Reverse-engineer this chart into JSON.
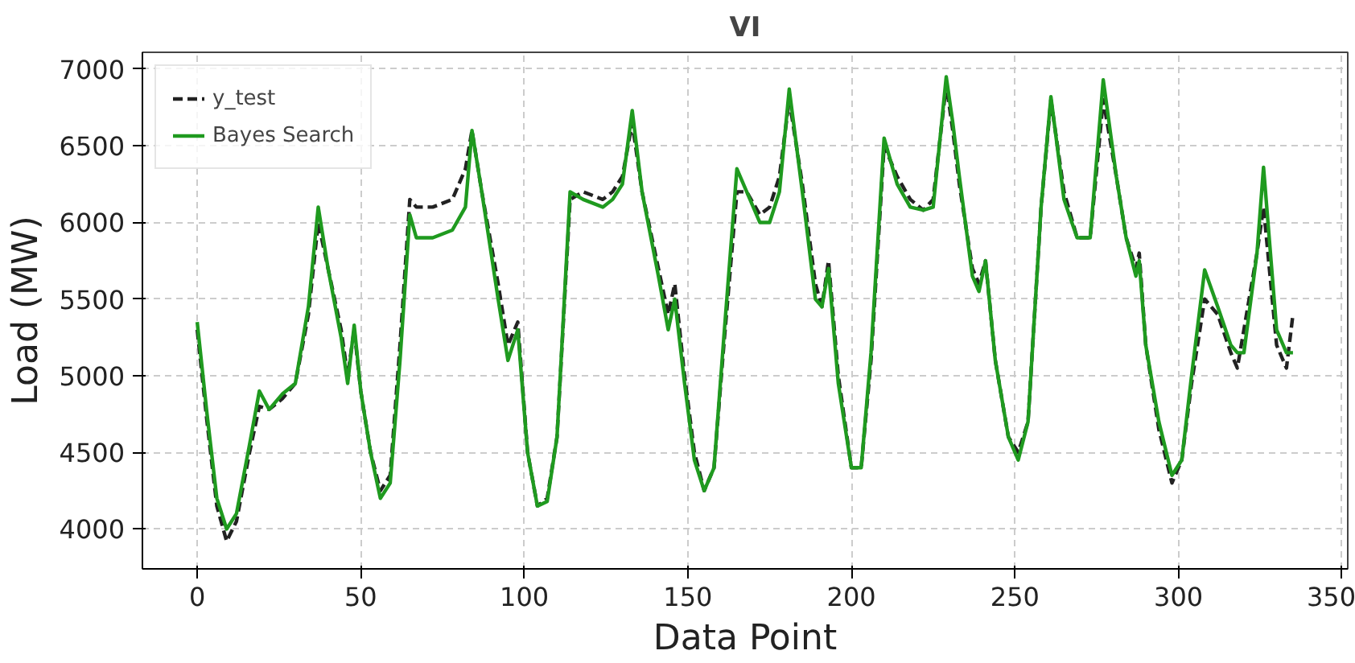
{
  "chart_data": {
    "type": "line",
    "title": "VI",
    "xlabel": "Data Point",
    "ylabel": "Load (MW)",
    "x": [
      0,
      3,
      6,
      9,
      12,
      16,
      19,
      22,
      26,
      30,
      34,
      37,
      40,
      44,
      46,
      48,
      50,
      53,
      56,
      59,
      62,
      65,
      67,
      72,
      78,
      82,
      84,
      87,
      92,
      95,
      98,
      101,
      104,
      107,
      110,
      114,
      118,
      124,
      127,
      130,
      133,
      136,
      141,
      144,
      146,
      149,
      152,
      155,
      158,
      161,
      165,
      168,
      172,
      175,
      178,
      181,
      185,
      189,
      191,
      193,
      196,
      200,
      203,
      206,
      210,
      214,
      218,
      222,
      225,
      229,
      231,
      233,
      237,
      239,
      241,
      244,
      248,
      251,
      254,
      258,
      261,
      265,
      269,
      273,
      277,
      281,
      284,
      287,
      288,
      290,
      294,
      298,
      301,
      304,
      308,
      312,
      316,
      318,
      320,
      324,
      326,
      330,
      333,
      335
    ],
    "series": [
      {
        "name": "y_test",
        "color": "#222222",
        "line_style": "dashed",
        "values": [
          5300,
          4700,
          4150,
          3920,
          4050,
          4500,
          4800,
          4780,
          4850,
          4950,
          5400,
          6000,
          5700,
          5300,
          5000,
          5300,
          4900,
          4500,
          4250,
          4350,
          5200,
          6150,
          6100,
          6100,
          6150,
          6350,
          6600,
          6200,
          5600,
          5200,
          5350,
          4500,
          4150,
          4200,
          4600,
          6150,
          6200,
          6150,
          6200,
          6300,
          6650,
          6200,
          5700,
          5400,
          5600,
          5000,
          4500,
          4250,
          4400,
          5200,
          6200,
          6200,
          6050,
          6100,
          6300,
          6800,
          6250,
          5600,
          5450,
          5750,
          5000,
          4400,
          4400,
          5100,
          6500,
          6300,
          6150,
          6080,
          6150,
          6900,
          6600,
          6250,
          5700,
          5600,
          5750,
          5100,
          4600,
          4500,
          4700,
          6100,
          6800,
          6200,
          5900,
          5900,
          6800,
          6300,
          5900,
          5700,
          5800,
          5200,
          4650,
          4300,
          4450,
          4950,
          5500,
          5400,
          5150,
          5050,
          5300,
          5800,
          6100,
          5200,
          5050,
          5400
        ]
      },
      {
        "name": "Bayes Search",
        "color": "#1f9a1f",
        "line_style": "solid",
        "values": [
          5350,
          4750,
          4200,
          4000,
          4100,
          4550,
          4900,
          4780,
          4880,
          4950,
          5450,
          6100,
          5700,
          5250,
          4950,
          5330,
          4900,
          4500,
          4200,
          4300,
          5100,
          6050,
          5900,
          5900,
          5950,
          6100,
          6600,
          6200,
          5500,
          5100,
          5300,
          4500,
          4150,
          4180,
          4600,
          6200,
          6150,
          6100,
          6150,
          6250,
          6730,
          6200,
          5650,
          5300,
          5500,
          4950,
          4450,
          4250,
          4400,
          5250,
          6350,
          6200,
          6000,
          6000,
          6200,
          6870,
          6200,
          5500,
          5450,
          5700,
          4950,
          4400,
          4400,
          5150,
          6550,
          6250,
          6100,
          6080,
          6100,
          6950,
          6650,
          6300,
          5650,
          5550,
          5750,
          5100,
          4600,
          4450,
          4700,
          6100,
          6820,
          6150,
          5900,
          5900,
          6930,
          6300,
          5900,
          5650,
          5750,
          5200,
          4700,
          4350,
          4450,
          5000,
          5690,
          5450,
          5200,
          5150,
          5150,
          5800,
          6360,
          5300,
          5150,
          5150
        ]
      }
    ],
    "xlim": [
      -16.75,
      351.75
    ],
    "ylim": [
      3740,
      7110
    ],
    "xticks": [
      0,
      50,
      100,
      150,
      200,
      250,
      300,
      350
    ],
    "yticks": [
      4000,
      4500,
      5000,
      5500,
      6000,
      6500,
      7000
    ],
    "grid": true,
    "legend": "top left"
  }
}
